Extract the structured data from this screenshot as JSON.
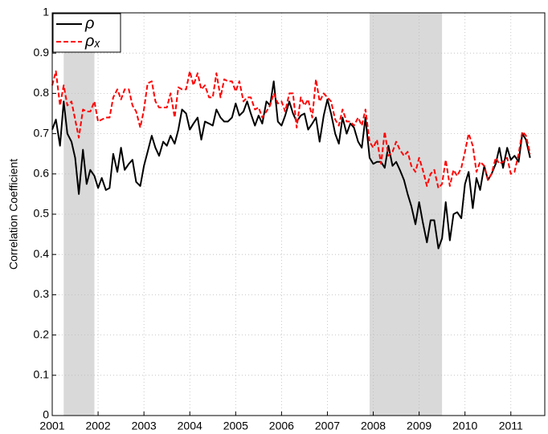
{
  "chart_data": {
    "type": "line",
    "ylabel": "Correlation Coefficient",
    "x": [
      2001,
      2001.08,
      2001.17,
      2001.25,
      2001.33,
      2001.42,
      2001.5,
      2001.58,
      2001.67,
      2001.75,
      2001.83,
      2001.92,
      2002,
      2002.08,
      2002.17,
      2002.25,
      2002.33,
      2002.42,
      2002.5,
      2002.58,
      2002.67,
      2002.75,
      2002.83,
      2002.92,
      2003,
      2003.08,
      2003.17,
      2003.25,
      2003.33,
      2003.42,
      2003.5,
      2003.58,
      2003.67,
      2003.75,
      2003.83,
      2003.92,
      2004,
      2004.08,
      2004.17,
      2004.25,
      2004.33,
      2004.42,
      2004.5,
      2004.58,
      2004.67,
      2004.75,
      2004.83,
      2004.92,
      2005,
      2005.08,
      2005.17,
      2005.25,
      2005.33,
      2005.42,
      2005.5,
      2005.58,
      2005.67,
      2005.75,
      2005.83,
      2005.92,
      2006,
      2006.08,
      2006.17,
      2006.25,
      2006.33,
      2006.42,
      2006.5,
      2006.58,
      2006.67,
      2006.75,
      2006.83,
      2006.92,
      2007,
      2007.08,
      2007.17,
      2007.25,
      2007.33,
      2007.42,
      2007.5,
      2007.58,
      2007.67,
      2007.75,
      2007.83,
      2007.92,
      2008,
      2008.08,
      2008.17,
      2008.25,
      2008.33,
      2008.42,
      2008.5,
      2008.58,
      2008.67,
      2008.75,
      2008.83,
      2008.92,
      2009,
      2009.08,
      2009.17,
      2009.25,
      2009.33,
      2009.42,
      2009.5,
      2009.58,
      2009.67,
      2009.75,
      2009.83,
      2009.92,
      2010,
      2010.08,
      2010.17,
      2010.25,
      2010.33,
      2010.42,
      2010.5,
      2010.58,
      2010.67,
      2010.75,
      2010.83,
      2010.92,
      2011,
      2011.08,
      2011.17,
      2011.25,
      2011.33,
      2011.42
    ],
    "series": [
      {
        "name": "ρ",
        "color": "#000000",
        "line_style": "solid",
        "values": [
          0.71,
          0.735,
          0.67,
          0.78,
          0.7,
          0.68,
          0.64,
          0.55,
          0.66,
          0.575,
          0.61,
          0.595,
          0.565,
          0.59,
          0.56,
          0.565,
          0.65,
          0.605,
          0.665,
          0.61,
          0.625,
          0.635,
          0.58,
          0.57,
          0.62,
          0.655,
          0.695,
          0.665,
          0.645,
          0.68,
          0.67,
          0.695,
          0.675,
          0.71,
          0.76,
          0.75,
          0.71,
          0.725,
          0.74,
          0.685,
          0.73,
          0.725,
          0.72,
          0.76,
          0.74,
          0.73,
          0.73,
          0.74,
          0.775,
          0.745,
          0.755,
          0.78,
          0.75,
          0.72,
          0.745,
          0.725,
          0.78,
          0.77,
          0.83,
          0.73,
          0.72,
          0.745,
          0.78,
          0.75,
          0.73,
          0.745,
          0.75,
          0.71,
          0.725,
          0.74,
          0.68,
          0.745,
          0.785,
          0.75,
          0.7,
          0.675,
          0.74,
          0.7,
          0.725,
          0.715,
          0.68,
          0.665,
          0.74,
          0.64,
          0.625,
          0.63,
          0.63,
          0.615,
          0.67,
          0.62,
          0.63,
          0.61,
          0.585,
          0.55,
          0.52,
          0.475,
          0.53,
          0.48,
          0.43,
          0.485,
          0.485,
          0.415,
          0.44,
          0.53,
          0.435,
          0.5,
          0.505,
          0.49,
          0.575,
          0.605,
          0.515,
          0.59,
          0.56,
          0.62,
          0.585,
          0.6,
          0.625,
          0.665,
          0.615,
          0.665,
          0.635,
          0.645,
          0.63,
          0.7,
          0.685,
          0.64
        ]
      },
      {
        "name": "ρₓ",
        "color": "#ff0000",
        "line_style": "dashed",
        "values": [
          0.82,
          0.855,
          0.77,
          0.82,
          0.77,
          0.78,
          0.735,
          0.69,
          0.76,
          0.755,
          0.755,
          0.78,
          0.73,
          0.735,
          0.74,
          0.74,
          0.79,
          0.81,
          0.785,
          0.81,
          0.81,
          0.77,
          0.755,
          0.715,
          0.76,
          0.825,
          0.83,
          0.78,
          0.765,
          0.765,
          0.765,
          0.8,
          0.74,
          0.815,
          0.81,
          0.81,
          0.855,
          0.82,
          0.85,
          0.81,
          0.82,
          0.79,
          0.79,
          0.85,
          0.79,
          0.835,
          0.83,
          0.83,
          0.805,
          0.83,
          0.78,
          0.79,
          0.79,
          0.76,
          0.765,
          0.74,
          0.755,
          0.77,
          0.8,
          0.775,
          0.78,
          0.755,
          0.8,
          0.8,
          0.715,
          0.79,
          0.77,
          0.785,
          0.74,
          0.835,
          0.78,
          0.8,
          0.79,
          0.78,
          0.735,
          0.72,
          0.76,
          0.73,
          0.73,
          0.72,
          0.74,
          0.72,
          0.76,
          0.68,
          0.665,
          0.685,
          0.625,
          0.705,
          0.645,
          0.655,
          0.68,
          0.66,
          0.645,
          0.655,
          0.62,
          0.605,
          0.64,
          0.61,
          0.57,
          0.6,
          0.61,
          0.565,
          0.575,
          0.635,
          0.57,
          0.61,
          0.595,
          0.615,
          0.655,
          0.7,
          0.67,
          0.605,
          0.63,
          0.62,
          0.585,
          0.6,
          0.64,
          0.625,
          0.63,
          0.64,
          0.6,
          0.605,
          0.65,
          0.705,
          0.695,
          0.65
        ]
      }
    ],
    "shaded_regions": [
      [
        2001.25,
        2001.92
      ],
      [
        2007.92,
        2009.5
      ]
    ],
    "shade_color": "#d9d9d9",
    "xlim": [
      2001,
      2011.74
    ],
    "ylim": [
      0,
      1
    ],
    "xticks": [
      2001,
      2002,
      2003,
      2004,
      2005,
      2006,
      2007,
      2008,
      2009,
      2010,
      2011
    ],
    "yticks": [
      0,
      0.1,
      0.2,
      0.3,
      0.4,
      0.5,
      0.6,
      0.7,
      0.8,
      0.9,
      1
    ],
    "grid": true,
    "legend_position": "upper-left"
  }
}
